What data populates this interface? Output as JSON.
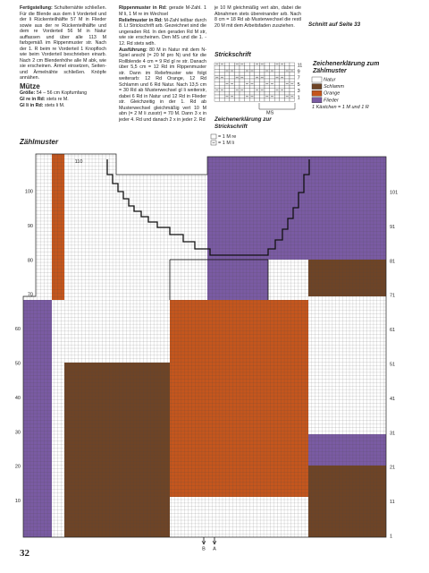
{
  "column1": [
    {
      "lead": "Fertigstellung:",
      "text": "Schulternähte schließen. Für die Blende aus dem li Vorderteil und der li Rückenteilhälfte 57 M in Flieder sowie aus der re Rückenteilhälfte und dem re Vorderteil 56 M in Natur auffassen und über alle 113 M farbgemäß im Rippenmuster str. Nach der 1. R beim re Vorderteil 1 Knopfloch wie beim Vorderteil beschrieben einarb. Nach 2 cm Blendenhöhe alle M abk, wie sie erscheinen. Ärmel einsetzen, Seiten- und Ärmelnähte schließen. Knöpfe annähen."
    }
  ],
  "muetze": {
    "title": "Mütze",
    "paragraphs": [
      {
        "lead": "Größe:",
        "text": "54 – 56 cm Kopfumfang"
      },
      {
        "lead": "Gl re in Rd:",
        "text": "stets re M."
      },
      {
        "lead": "Gl li in Rd:",
        "text": "stets li M."
      }
    ]
  },
  "column2": [
    {
      "lead": "Rippenmuster in Rd:",
      "text": "gerade M-Zahl. 1 M li, 1 M re im Wechsel"
    },
    {
      "lead": "Reliefmuster in Rd:",
      "text": "M-Zahl teilbar durch 8. Lt Strickschrift arb. Gezeichnet sind die ungeraden Rd. In den geraden Rd M str, wie sie erscheinen. Den MS und die 1. - 12. Rd stets wdh."
    },
    {
      "lead": "Ausführung:",
      "text": "80 M in Natur mit dem N-Spiel anschl (= 20 M pro N) und für die Rollblende 4 cm = 9 Rd gl re str. Danach über 5,5 cm = 12 Rd im Rippenmuster str. Dann im Reliefmuster wie folgt weiterarb: 12 Rd Orange, 12 Rd Schlamm und 6 Rd Natur. Nach 13,5 cm = 30 Rd ab Musterwechsel gl li weiterstr, dabei 6 Rd in Natur und 12 Rd in Flieder str. Gleichzeitig in der 1. Rd ab Musterwechsel gleichmäßig vert 10 M abn (= 2 M li zusstr) = 70 M. Dann 3 x in jeder 4. Rd und danach 2 x in jeder 2. Rd"
    }
  ],
  "column3": [
    {
      "lead": "",
      "text": "je 10 M gleichmäßig vert abn, dabei die Abnahmen stets übereinander arb. Nach 8 cm = 18 Rd ab Musterwechsel die restl 20 M mit dem Arbeitsfaden zusziehen."
    }
  ],
  "strickschrift": {
    "title": "Strickschrift",
    "row_numbers": [
      "11",
      "9",
      "7",
      "5",
      "3",
      "1"
    ],
    "repeat": "MS"
  },
  "zeichen_strickschrift": {
    "title": "Zeichenerklärung zur Strickschrift",
    "items": [
      "= 1 M re",
      "= 1 M li"
    ]
  },
  "schnitt": "Schnitt auf Seite 33",
  "legend": {
    "title": "Zeichenerklärung zum Zählmuster",
    "items": [
      {
        "label": "Natur",
        "color": "#ffffff"
      },
      {
        "label": "Schlamm",
        "color": "#6e4426"
      },
      {
        "label": "Orange",
        "color": "#c4561d"
      },
      {
        "label": "Flieder",
        "color": "#7a5ba3"
      }
    ],
    "note": "1 Kästchen = 1 M und 1 R"
  },
  "zaehlmuster": {
    "title": "Zählmuster",
    "top_label": 110,
    "left_labels": [
      100,
      90,
      80,
      70,
      60,
      50,
      40,
      30,
      20,
      10
    ],
    "right_labels": [
      101,
      91,
      81,
      71,
      61,
      51,
      41,
      31,
      21,
      11,
      1
    ],
    "markers": [
      "B",
      "A"
    ]
  },
  "page_number": "32"
}
